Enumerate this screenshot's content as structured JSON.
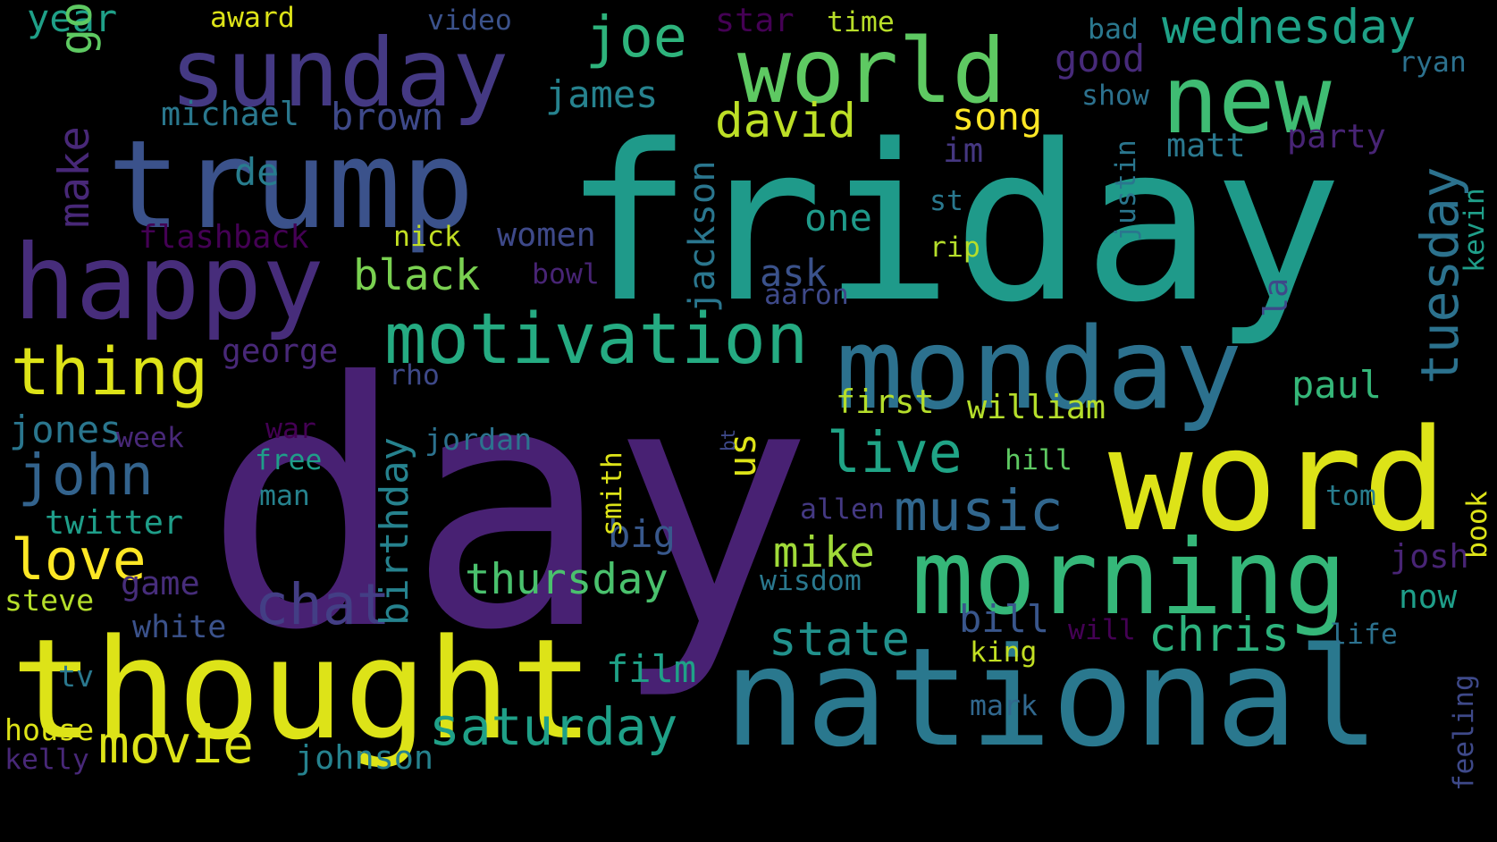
{
  "words": [
    {
      "text": "day",
      "color": "#482173"
    },
    {
      "text": "friday",
      "color": "#1f9a8a"
    },
    {
      "text": "trump",
      "color": "#3b528b"
    },
    {
      "text": "national",
      "color": "#2a788e"
    },
    {
      "text": "thought",
      "color": "#dde318"
    },
    {
      "text": "word",
      "color": "#dde318"
    },
    {
      "text": "sunday",
      "color": "#443983"
    },
    {
      "text": "monday",
      "color": "#2c718e"
    },
    {
      "text": "morning",
      "color": "#35b779"
    },
    {
      "text": "world",
      "color": "#5ec962"
    },
    {
      "text": "happy",
      "color": "#472d7b"
    },
    {
      "text": "new",
      "color": "#3fbc73"
    },
    {
      "text": "motivation",
      "color": "#25ab82"
    },
    {
      "text": "tuesday",
      "color": "#2c728e"
    },
    {
      "text": "joe",
      "color": "#2eb37c"
    },
    {
      "text": "wednesday",
      "color": "#1fa187"
    },
    {
      "text": "thing",
      "color": "#dde318"
    },
    {
      "text": "john",
      "color": "#33638d"
    },
    {
      "text": "love",
      "color": "#fde725"
    },
    {
      "text": "live",
      "color": "#20a486"
    },
    {
      "text": "chat",
      "color": "#433e85"
    },
    {
      "text": "music",
      "color": "#31678e"
    },
    {
      "text": "saturday",
      "color": "#1fa088"
    },
    {
      "text": "movie",
      "color": "#dde318"
    },
    {
      "text": "chris",
      "color": "#2db27d"
    },
    {
      "text": "state",
      "color": "#21918c"
    },
    {
      "text": "black",
      "color": "#7ad151"
    },
    {
      "text": "david",
      "color": "#bddf26"
    },
    {
      "text": "thursday",
      "color": "#4ac16d"
    },
    {
      "text": "paul",
      "color": "#35b779"
    },
    {
      "text": "make",
      "color": "#482878"
    },
    {
      "text": "mike",
      "color": "#a0da39"
    },
    {
      "text": "james",
      "color": "#26828e"
    },
    {
      "text": "michael",
      "color": "#2a788e"
    },
    {
      "text": "brown",
      "color": "#3e4989"
    },
    {
      "text": "song",
      "color": "#fde725"
    },
    {
      "text": "good",
      "color": "#472a7a"
    },
    {
      "text": "matt",
      "color": "#2a788e"
    },
    {
      "text": "party",
      "color": "#482475"
    },
    {
      "text": "william",
      "color": "#b5de2b"
    },
    {
      "text": "jones",
      "color": "#2a768e"
    },
    {
      "text": "twitter",
      "color": "#1f9e89"
    },
    {
      "text": "game",
      "color": "#472d7b"
    },
    {
      "text": "film",
      "color": "#1fa187"
    },
    {
      "text": "bill",
      "color": "#39568c"
    },
    {
      "text": "big",
      "color": "#38588c"
    },
    {
      "text": "ask",
      "color": "#3b528b"
    },
    {
      "text": "one",
      "color": "#1f9a8a"
    },
    {
      "text": "wisdom",
      "color": "#2a788e"
    },
    {
      "text": "josh",
      "color": "#482475"
    },
    {
      "text": "now",
      "color": "#1f9e89"
    },
    {
      "text": "year",
      "color": "#1fa088"
    },
    {
      "text": "award",
      "color": "#dde318"
    },
    {
      "text": "video",
      "color": "#3b528b"
    },
    {
      "text": "star",
      "color": "#440154"
    },
    {
      "text": "time",
      "color": "#b8de29"
    },
    {
      "text": "bad",
      "color": "#2a788e"
    },
    {
      "text": "ryan",
      "color": "#2c718e"
    },
    {
      "text": "show",
      "color": "#2c718e"
    },
    {
      "text": "im",
      "color": "#453781"
    },
    {
      "text": "de",
      "color": "#287d8e"
    },
    {
      "text": "st",
      "color": "#2a788e"
    },
    {
      "text": "flashback",
      "color": "#440154"
    },
    {
      "text": "nick",
      "color": "#c2df23"
    },
    {
      "text": "women",
      "color": "#3e4989"
    },
    {
      "text": "bowl",
      "color": "#482475"
    },
    {
      "text": "rip",
      "color": "#b5de2b"
    },
    {
      "text": "aaron",
      "color": "#3e4989"
    },
    {
      "text": "george",
      "color": "#482878"
    },
    {
      "text": "rho",
      "color": "#3e4989"
    },
    {
      "text": "first",
      "color": "#b5de2b"
    },
    {
      "text": "war",
      "color": "#440154"
    },
    {
      "text": "week",
      "color": "#482878"
    },
    {
      "text": "free",
      "color": "#1f9e89"
    },
    {
      "text": "jordan",
      "color": "#2c728e"
    },
    {
      "text": "man",
      "color": "#26828e"
    },
    {
      "text": "hill",
      "color": "#5ec962"
    },
    {
      "text": "tom",
      "color": "#287d8e"
    },
    {
      "text": "allen",
      "color": "#443983"
    },
    {
      "text": "steve",
      "color": "#b5de2b"
    },
    {
      "text": "white",
      "color": "#3b528b"
    },
    {
      "text": "tv",
      "color": "#2a788e"
    },
    {
      "text": "king",
      "color": "#c2df23"
    },
    {
      "text": "will",
      "color": "#440154"
    },
    {
      "text": "life",
      "color": "#2c718e"
    },
    {
      "text": "mark",
      "color": "#31688e"
    },
    {
      "text": "house",
      "color": "#dde318"
    },
    {
      "text": "kelly",
      "color": "#482878"
    },
    {
      "text": "johnson",
      "color": "#26828e"
    },
    {
      "text": "go",
      "color": "#5ec962"
    },
    {
      "text": "jackson",
      "color": "#2a768e"
    },
    {
      "text": "birthday",
      "color": "#26828e"
    },
    {
      "text": "smith",
      "color": "#dde318"
    },
    {
      "text": "us",
      "color": "#dde318"
    },
    {
      "text": "bt",
      "color": "#3e4989"
    },
    {
      "text": "justin",
      "color": "#2a768e"
    },
    {
      "text": "la",
      "color": "#3e4989"
    },
    {
      "text": "kevin",
      "color": "#1f9e89"
    },
    {
      "text": "book",
      "color": "#dde318"
    },
    {
      "text": "feeling",
      "color": "#3e4989"
    }
  ]
}
